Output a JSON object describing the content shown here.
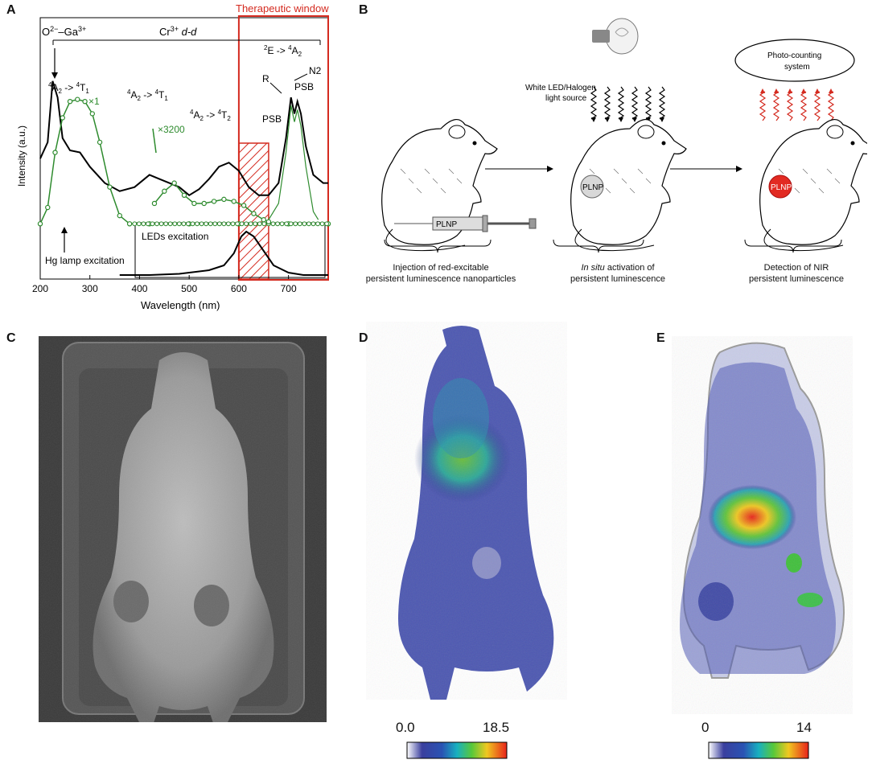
{
  "panels": {
    "a": "A",
    "b": "B",
    "c": "C",
    "d": "D",
    "e": "E"
  },
  "panel_a": {
    "ticks_x": [
      "200",
      "300",
      "400",
      "500",
      "600",
      "700"
    ],
    "xlabel": "Wavelength (nm)",
    "ylabel": "Intensity (a.u.)",
    "therapeutic_window": "Therapeutic window",
    "bracket_o_ga": "O",
    "bracket_o_sup": "2−",
    "bracket_ga": "–Ga",
    "bracket_ga_sup": "3+",
    "bracket_cr": "Cr",
    "bracket_cr_sup": "3+",
    "bracket_dd": "d-d",
    "ann_a2t1_a_pre": "4",
    "ann_a2t1_a_mid": "A",
    "ann_a2t1_a_sub": "2",
    "ann_a2t1_a_arrow": " -> ",
    "ann_a2t1_a_sup2": "4",
    "ann_a2t1_a_post": "T",
    "ann_a2t1_a_sub2": "1",
    "ann_a2t1_b_pre": "4",
    "ann_a2t1_b_mid": "A",
    "ann_a2t1_b_sub": "2",
    "ann_a2t1_b_arrow": " -> ",
    "ann_a2t1_b_sup2": "4",
    "ann_a2t1_b_post": "T",
    "ann_a2t1_b_sub2": "1",
    "ann_a2t2_pre": "4",
    "ann_a2t2_mid": "A",
    "ann_a2t2_sub": "2",
    "ann_a2t2_arrow": " -> ",
    "ann_a2t2_sup2": "4",
    "ann_a2t2_post": "T",
    "ann_a2t2_sub2": "2",
    "ann_e_pre": "2",
    "ann_e_mid": "E",
    "ann_e_arrow": " -> ",
    "ann_e_sup2": "4",
    "ann_e_post": "A",
    "ann_e_sub2": "2",
    "x1": "×1",
    "x3200": "×3200",
    "r": "R",
    "n2": "N2",
    "psb1": "PSB",
    "psb2": "PSB",
    "hg": "Hg lamp excitation",
    "leds": "LEDs excitation"
  },
  "panel_b": {
    "light_source_line1": "White LED/Halogen",
    "light_source_line2": "light source",
    "photo_counting_line1": "Photo-counting",
    "photo_counting_line2": "system",
    "plnp_syringe": "PLNP",
    "plnp_mouse2": "PLNP",
    "plnp_mouse3": "PLNP",
    "cap1_line1": "Injection of red-excitable",
    "cap1_line2": "persistent luminescence nanoparticles",
    "cap2_italic": "In situ",
    "cap2_line1_rest": " activation of",
    "cap2_line2": "persistent luminescence",
    "cap3_line1": "Detection of NIR",
    "cap3_line2": "persistent luminescence"
  },
  "panel_d": {
    "cbar_min": "0.0",
    "cbar_max": "18.5"
  },
  "panel_e": {
    "cbar_min": "0",
    "cbar_max": "14"
  },
  "colors": {
    "therapeutic": "#d42a1f",
    "green_curve": "#2e8b2e",
    "heat_low": "#2b2e8c",
    "heat_high": "#e8231a"
  },
  "chart_data": {
    "type": "line",
    "x_range": [
      200,
      780
    ],
    "therapeutic_window_nm": [
      600,
      780
    ],
    "hatched_region_nm": [
      600,
      660
    ],
    "series": [
      {
        "x": [
          200,
          215,
          225,
          235,
          245,
          260,
          280,
          300,
          330,
          360,
          390,
          420,
          440,
          460,
          480,
          500,
          520,
          540,
          560,
          580,
          600,
          620,
          640,
          660,
          680,
          695,
          705,
          712,
          718,
          725,
          735,
          750,
          770,
          780
        ],
        "y": [
          0.52,
          0.6,
          0.9,
          0.82,
          0.62,
          0.56,
          0.55,
          0.48,
          0.4,
          0.36,
          0.38,
          0.44,
          0.42,
          0.4,
          0.38,
          0.34,
          0.37,
          0.42,
          0.48,
          0.5,
          0.46,
          0.38,
          0.34,
          0.34,
          0.4,
          0.62,
          0.82,
          0.74,
          0.8,
          0.74,
          0.58,
          0.44,
          0.4,
          0.4
        ]
      },
      {
        "x": [
          200,
          215,
          230,
          245,
          260,
          275,
          290,
          305,
          320,
          340,
          360,
          380,
          420,
          500,
          600,
          700,
          780
        ],
        "y": [
          0.2,
          0.28,
          0.55,
          0.72,
          0.8,
          0.81,
          0.8,
          0.74,
          0.6,
          0.38,
          0.24,
          0.2,
          0.2,
          0.2,
          0.2,
          0.2,
          0.2
        ]
      },
      {
        "x": [
          430,
          450,
          470,
          490,
          510,
          530,
          550,
          570,
          590,
          610,
          630,
          650,
          660
        ],
        "y": [
          0.3,
          0.36,
          0.4,
          0.34,
          0.3,
          0.3,
          0.31,
          0.32,
          0.31,
          0.29,
          0.25,
          0.22,
          0.21
        ]
      },
      {
        "x": [
          660,
          680,
          695,
          705,
          712,
          718,
          725,
          735,
          750,
          760
        ],
        "y": [
          0.22,
          0.3,
          0.55,
          0.78,
          0.7,
          0.76,
          0.68,
          0.48,
          0.26,
          0.22
        ]
      },
      {
        "x": [
          360,
          420,
          480,
          540,
          570,
          590,
          605,
          615,
          630,
          650,
          670,
          700,
          730,
          780
        ],
        "y": [
          0.02,
          0.02,
          0.03,
          0.06,
          0.1,
          0.2,
          0.34,
          0.38,
          0.34,
          0.22,
          0.1,
          0.04,
          0.02,
          0.02
        ]
      }
    ]
  }
}
